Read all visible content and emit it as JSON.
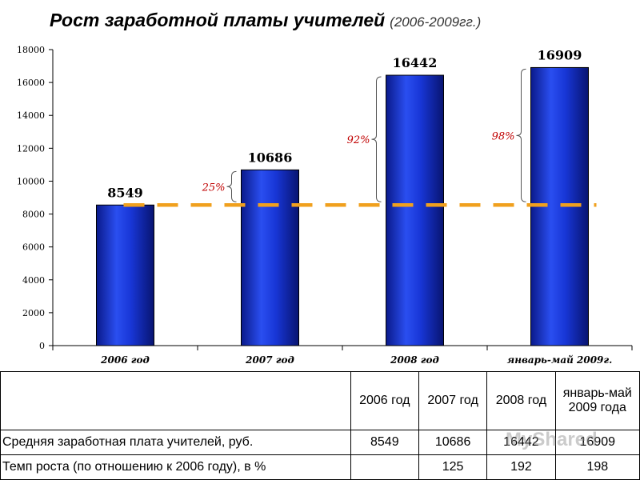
{
  "title": {
    "main": "Рост заработной платы учителей",
    "sub": "(2006-2009гг.)"
  },
  "chart_data": {
    "type": "bar",
    "categories": [
      "2006 год",
      "2007 год",
      "2008 год",
      "январь-май 2009г."
    ],
    "values": [
      8549,
      10686,
      16442,
      16909
    ],
    "ylim": [
      0,
      18000
    ],
    "yticks": [
      0,
      2000,
      4000,
      6000,
      8000,
      10000,
      12000,
      14000,
      16000,
      18000
    ],
    "baseline_value": 8549,
    "growth_annotations": [
      {
        "category": "2007 год",
        "label": "25%"
      },
      {
        "category": "2008 год",
        "label": "92%"
      },
      {
        "category": "январь-май 2009г.",
        "label": "98%"
      }
    ],
    "colors": {
      "bar": "#1530c8",
      "bar_dark": "#0a1a8a",
      "baseline": "#f0a01e",
      "annotation": "#c00000"
    }
  },
  "table": {
    "headers": [
      "",
      "2006 год",
      "2007 год",
      "2008 год",
      "январь-май 2009 года"
    ],
    "rows": [
      [
        "Средняя заработная плата учителей, руб.",
        "8549",
        "10686",
        "16442",
        "16909"
      ],
      [
        "Темп роста (по отношению к 2006 году), в %",
        "",
        "125",
        "192",
        "198"
      ]
    ]
  },
  "watermark": "MyShared"
}
